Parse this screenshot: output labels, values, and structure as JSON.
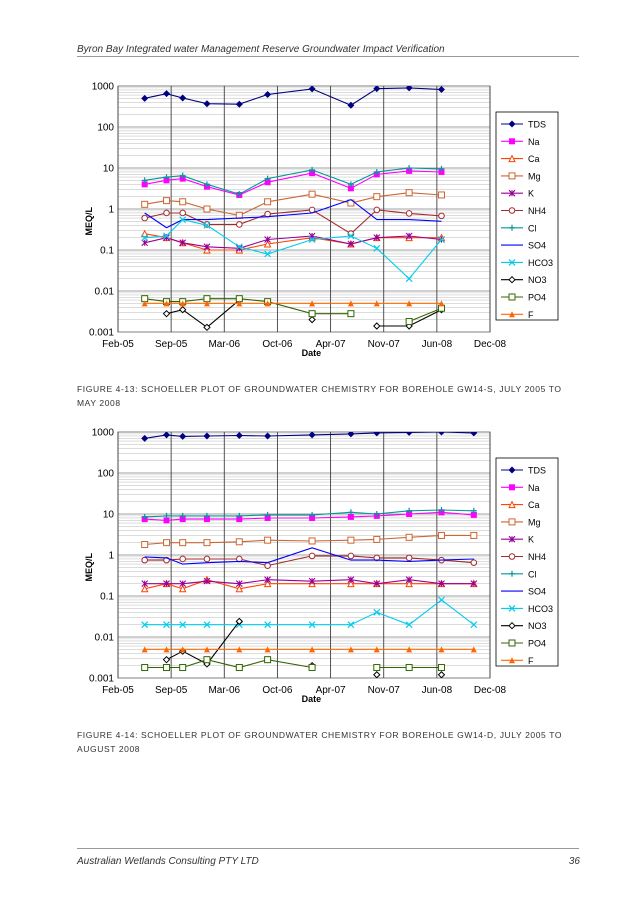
{
  "header": {
    "title": "Byron Bay Integrated water Management Reserve Groundwater Impact Verification"
  },
  "footer": {
    "company": "Australian Wetlands Consulting PTY LTD",
    "page_number": "36"
  },
  "colors": {
    "TDS": "#000080",
    "Na": "#FF00FF",
    "Ca": "#FF4500",
    "Mg": "#CC6633",
    "K": "#990099",
    "NH4": "#A52A2A",
    "Cl": "#009999",
    "SO4": "#0000FF",
    "HCO3": "#00CCEE",
    "NO3": "#000000",
    "PO4": "#336600",
    "F": "#FF6600"
  },
  "chart_data": [
    {
      "type": "line",
      "title": "",
      "caption": "FIGURE 4-13: SCHOELLER PLOT OF GROUNDWATER CHEMISTRY FOR BOREHOLE GW14-S, JULY 2005 TO MAY 2008",
      "xlabel": "Date",
      "ylabel": "MEQ/L",
      "yscale": "log",
      "ylim": [
        0.001,
        1000
      ],
      "yticks": [
        "1000",
        "100",
        "10",
        "1",
        "0.1",
        "0.01",
        "0.001"
      ],
      "xticks": [
        "Feb-05",
        "Sep-05",
        "Mar-06",
        "Oct-06",
        "Apr-07",
        "Nov-07",
        "Jun-08",
        "Dec-08"
      ],
      "legend_position": "right",
      "x": [
        0.33,
        0.6,
        0.8,
        1.1,
        1.5,
        1.85,
        2.4,
        2.88,
        3.2,
        3.6,
        4.0,
        4.4
      ],
      "series": [
        {
          "name": "TDS",
          "values": [
            500,
            650,
            510,
            370,
            360,
            620,
            850,
            340,
            860,
            900,
            820,
            null
          ]
        },
        {
          "name": "Na",
          "values": [
            4,
            5,
            5.5,
            3.5,
            2.2,
            4.5,
            7.5,
            3.2,
            7,
            8.5,
            8,
            null
          ]
        },
        {
          "name": "Ca",
          "values": [
            0.25,
            0.2,
            0.15,
            0.1,
            0.1,
            0.14,
            0.2,
            0.14,
            0.2,
            0.2,
            0.2,
            null
          ]
        },
        {
          "name": "Mg",
          "values": [
            1.3,
            1.6,
            1.5,
            1,
            0.7,
            1.5,
            2.3,
            1.4,
            2,
            2.5,
            2.2,
            null
          ]
        },
        {
          "name": "K",
          "values": [
            0.15,
            0.2,
            0.15,
            0.12,
            0.11,
            0.18,
            0.22,
            0.14,
            0.2,
            0.22,
            0.18,
            null
          ]
        },
        {
          "name": "NH4",
          "values": [
            0.6,
            0.8,
            0.8,
            0.42,
            0.42,
            0.75,
            0.95,
            0.25,
            0.95,
            0.78,
            0.68,
            null
          ]
        },
        {
          "name": "Cl",
          "values": [
            5,
            6,
            6.5,
            4,
            2.3,
            5.5,
            9,
            4,
            8,
            10,
            9.5,
            null
          ]
        },
        {
          "name": "SO4",
          "values": [
            0.8,
            0.35,
            0.55,
            0.55,
            0.6,
            0.65,
            0.8,
            1.7,
            0.55,
            0.55,
            0.5,
            null
          ]
        },
        {
          "name": "HCO3",
          "values": [
            0.2,
            0.22,
            0.55,
            0.4,
            0.12,
            0.08,
            0.18,
            0.22,
            0.11,
            0.02,
            0.18,
            null
          ]
        },
        {
          "name": "NO3",
          "values": [
            null,
            0.0028,
            0.0035,
            0.0013,
            0.006,
            null,
            0.002,
            null,
            0.0014,
            0.0014,
            0.0035,
            null
          ]
        },
        {
          "name": "PO4",
          "values": [
            0.0065,
            0.0055,
            0.0055,
            0.0065,
            0.0065,
            0.0055,
            0.0028,
            0.0028,
            null,
            0.0018,
            0.0038,
            null
          ]
        },
        {
          "name": "F",
          "values": [
            0.005,
            0.005,
            0.005,
            0.005,
            0.005,
            0.005,
            0.005,
            0.005,
            0.005,
            0.005,
            0.005,
            null
          ]
        }
      ]
    },
    {
      "type": "line",
      "title": "",
      "caption": "FIGURE 4-14: SCHOELLER PLOT OF GROUNDWATER CHEMISTRY FOR BOREHOLE GW14-D, JULY 2005 TO AUGUST 2008",
      "xlabel": "Date",
      "ylabel": "MEQ/L",
      "yscale": "log",
      "ylim": [
        0.001,
        1000
      ],
      "yticks": [
        "1000",
        "100",
        "10",
        "1",
        "0.1",
        "0.01",
        "0.001"
      ],
      "xticks": [
        "Feb-05",
        "Sep-05",
        "Mar-06",
        "Oct-06",
        "Apr-07",
        "Nov-07",
        "Jun-08",
        "Dec-08"
      ],
      "legend_position": "right",
      "x": [
        0.33,
        0.6,
        0.8,
        1.1,
        1.5,
        1.85,
        2.4,
        2.88,
        3.2,
        3.6,
        4.0,
        4.4
      ],
      "series": [
        {
          "name": "TDS",
          "values": [
            700,
            850,
            780,
            800,
            820,
            800,
            850,
            900,
            950,
            980,
            1000,
            950
          ]
        },
        {
          "name": "Na",
          "values": [
            7.5,
            7,
            7.5,
            7.5,
            7.5,
            8,
            8,
            8.5,
            9,
            10,
            11,
            9.5
          ]
        },
        {
          "name": "Ca",
          "values": [
            0.15,
            0.2,
            0.15,
            0.25,
            0.15,
            0.2,
            0.2,
            0.2,
            0.2,
            0.2,
            0.2,
            0.2
          ]
        },
        {
          "name": "Mg",
          "values": [
            1.8,
            2,
            2,
            2,
            2.1,
            2.3,
            2.2,
            2.3,
            2.4,
            2.7,
            3,
            3
          ]
        },
        {
          "name": "K",
          "values": [
            0.2,
            0.2,
            0.2,
            0.23,
            0.2,
            0.25,
            0.23,
            0.25,
            0.2,
            0.25,
            0.2,
            0.2
          ]
        },
        {
          "name": "NH4",
          "values": [
            0.75,
            0.75,
            0.8,
            0.8,
            0.8,
            0.55,
            0.95,
            0.95,
            0.85,
            0.85,
            0.75,
            0.65
          ]
        },
        {
          "name": "Cl",
          "values": [
            8.5,
            9,
            9,
            9,
            9,
            9.5,
            9.5,
            11,
            10,
            12,
            12.5,
            12
          ]
        },
        {
          "name": "SO4",
          "values": [
            0.9,
            0.85,
            0.6,
            0.65,
            0.7,
            0.65,
            1.5,
            0.75,
            0.75,
            0.7,
            0.75,
            0.8
          ]
        },
        {
          "name": "HCO3",
          "values": [
            0.02,
            0.02,
            0.02,
            0.02,
            0.02,
            0.02,
            0.02,
            0.02,
            0.04,
            0.02,
            0.08,
            0.02
          ]
        },
        {
          "name": "NO3",
          "values": [
            null,
            0.0028,
            0.0045,
            0.0022,
            0.024,
            null,
            0.002,
            null,
            0.0012,
            null,
            0.0012,
            null
          ]
        },
        {
          "name": "PO4",
          "values": [
            0.0018,
            0.0018,
            0.0018,
            0.0028,
            0.0018,
            0.0028,
            0.0018,
            null,
            0.0018,
            0.0018,
            0.0018,
            null
          ]
        },
        {
          "name": "F",
          "values": [
            0.005,
            0.005,
            0.005,
            0.005,
            0.005,
            0.005,
            0.005,
            0.005,
            0.005,
            0.005,
            0.005,
            0.005
          ]
        }
      ]
    }
  ]
}
